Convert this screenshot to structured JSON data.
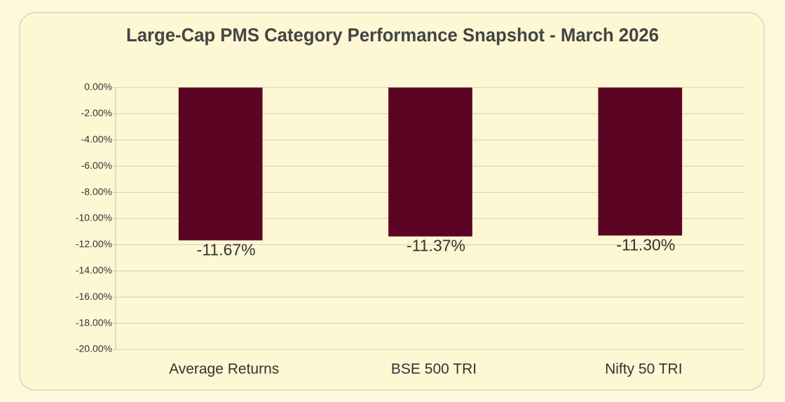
{
  "chart_data": {
    "type": "bar",
    "title": "Large-Cap PMS Category Performance Snapshot - March 2026",
    "categories": [
      "Average Returns",
      "BSE 500 TRI",
      "Nifty 50 TRI"
    ],
    "values": [
      -11.67,
      -11.37,
      -11.3
    ],
    "value_labels": [
      "-11.67%",
      "-11.37%",
      "-11.30%"
    ],
    "color": "#5c0424",
    "ylim": [
      -20,
      0
    ],
    "yticks": [
      {
        "value": 0,
        "label": "0.00%"
      },
      {
        "value": -2,
        "label": "-2.00%"
      },
      {
        "value": -4,
        "label": "-4.00%"
      },
      {
        "value": -6,
        "label": "-6.00%"
      },
      {
        "value": -8,
        "label": "-8.00%"
      },
      {
        "value": -10,
        "label": "-10.00%"
      },
      {
        "value": -12,
        "label": "-12.00%"
      },
      {
        "value": -14,
        "label": "-14.00%"
      },
      {
        "value": -16,
        "label": "-16.00%"
      },
      {
        "value": -18,
        "label": "-18.00%"
      },
      {
        "value": -20,
        "label": "-20.00%"
      }
    ],
    "grid": true
  }
}
